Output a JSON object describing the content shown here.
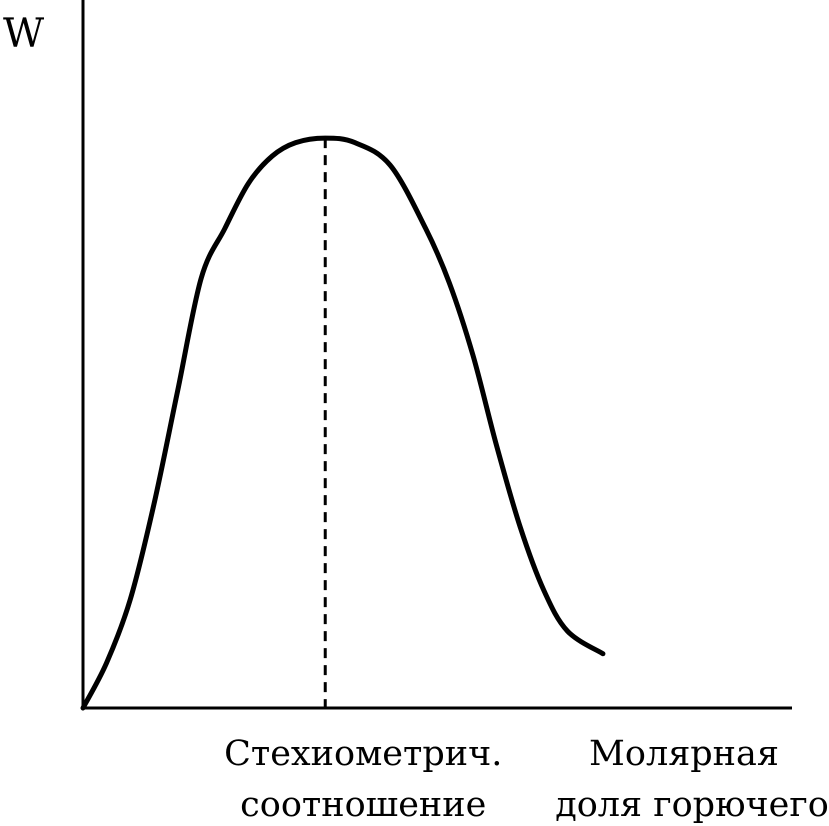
{
  "chart_data": {
    "type": "line",
    "title": "",
    "ylabel": "W",
    "xlabel_lines": [
      "Молярная",
      "доля горючего"
    ],
    "marker_label_lines": [
      "Стехиометрич.",
      "соотношение"
    ],
    "marker_x": 0.41,
    "xlim": [
      0,
      1.2
    ],
    "ylim": [
      0,
      1.3
    ],
    "grid": false,
    "legend": "none",
    "series": [
      {
        "x": [
          0,
          0.04,
          0.08,
          0.12,
          0.16,
          0.2,
          0.24,
          0.28,
          0.32,
          0.36,
          0.41,
          0.46,
          0.52,
          0.58,
          0.62,
          0.66,
          0.7,
          0.74,
          0.78,
          0.82,
          0.88
        ],
        "y": [
          0,
          0.1,
          0.24,
          0.45,
          0.7,
          0.95,
          1.06,
          1.16,
          1.22,
          1.25,
          1.26,
          1.25,
          1.2,
          1.06,
          0.94,
          0.78,
          0.58,
          0.4,
          0.26,
          0.17,
          0.12
        ]
      }
    ],
    "colors": {
      "line": "#000000",
      "axis": "#000000",
      "marker": "#000000"
    }
  }
}
